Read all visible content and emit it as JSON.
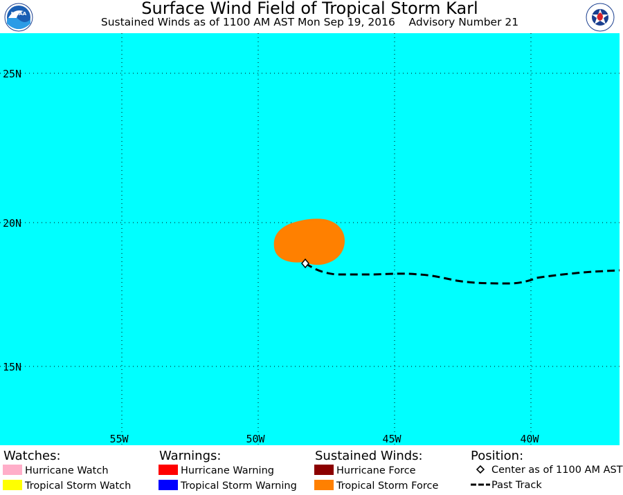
{
  "header": {
    "title": "Surface Wind Field of Tropical Storm Karl",
    "subtitle": "Sustained Winds as of 1100 AM AST Mon Sep 19, 2016    Advisory Number 21",
    "left_logo": "NOAA",
    "right_logo_text": "NATIONAL WEATHER SERVICE"
  },
  "map": {
    "ocean_color": "#00ffff",
    "lat_labels": [
      "25N",
      "20N",
      "15N"
    ],
    "lon_labels": [
      "55W",
      "50W",
      "45W",
      "40W"
    ],
    "grid": "dotted",
    "wind_field_color": "#ff8000",
    "track_color": "#000000"
  },
  "legend": {
    "watches": {
      "heading": "Watches:",
      "items": [
        {
          "label": "Hurricane Watch",
          "color": "#ffaec9"
        },
        {
          "label": "Tropical Storm Watch",
          "color": "#ffff00"
        }
      ]
    },
    "warnings": {
      "heading": "Warnings:",
      "items": [
        {
          "label": "Hurricane Warning",
          "color": "#ff0000"
        },
        {
          "label": "Tropical Storm Warning",
          "color": "#0000ff"
        }
      ]
    },
    "winds": {
      "heading": "Sustained Winds:",
      "items": [
        {
          "label": "Hurricane Force",
          "color": "#8b0000"
        },
        {
          "label": "Tropical Storm Force",
          "color": "#ff8000"
        }
      ]
    },
    "position": {
      "heading": "Position:",
      "center_label": "Center as of 1100 AM AST",
      "track_label": "Past Track"
    }
  }
}
